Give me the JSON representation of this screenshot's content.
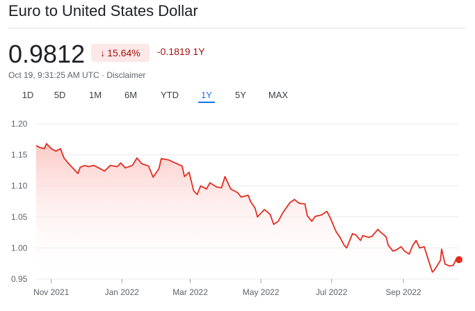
{
  "header": {
    "title": "Euro to United States Dollar"
  },
  "quote": {
    "price": "0.9812",
    "percent_change": "15.64%",
    "abs_change": "-0.1819 1Y",
    "meta": "Oct 19, 9:31:25 AM UTC · Disclaimer"
  },
  "tabs": [
    {
      "label": "1D"
    },
    {
      "label": "5D"
    },
    {
      "label": "1M"
    },
    {
      "label": "6M"
    },
    {
      "label": "YTD"
    },
    {
      "label": "1Y"
    },
    {
      "label": "5Y"
    },
    {
      "label": "MAX"
    }
  ],
  "active_tab": "1Y",
  "colors": {
    "line": "#e42b1f",
    "fill_top": "#fbc4c0",
    "negative_text": "#a50e0e",
    "negative_bg": "#fce8e6",
    "active_tab": "#1a73e8"
  },
  "chart_data": {
    "type": "area",
    "y_ticks": [
      "1.20",
      "1.15",
      "1.10",
      "1.05",
      "1.00",
      "0.95"
    ],
    "ylim": [
      0.95,
      1.2
    ],
    "x_ticks": [
      "Nov 2021",
      "Jan 2022",
      "Mar 2022",
      "May 2022",
      "Jul 2022",
      "Sep 2022"
    ],
    "x_tick_dates": [
      "2021-11-01",
      "2022-01-01",
      "2022-03-01",
      "2022-05-01",
      "2022-07-01",
      "2022-09-01"
    ],
    "grid": "horizontal",
    "series": [
      {
        "points": [
          [
            "2021-10-19",
            1.165
          ],
          [
            "2021-10-22",
            1.162
          ],
          [
            "2021-10-26",
            1.16
          ],
          [
            "2021-10-28",
            1.168
          ],
          [
            "2021-11-01",
            1.16
          ],
          [
            "2021-11-05",
            1.156
          ],
          [
            "2021-11-09",
            1.16
          ],
          [
            "2021-11-12",
            1.145
          ],
          [
            "2021-11-16",
            1.136
          ],
          [
            "2021-11-19",
            1.13
          ],
          [
            "2021-11-24",
            1.12
          ],
          [
            "2021-11-26",
            1.13
          ],
          [
            "2021-11-30",
            1.133
          ],
          [
            "2021-12-03",
            1.131
          ],
          [
            "2021-12-08",
            1.133
          ],
          [
            "2021-12-13",
            1.128
          ],
          [
            "2021-12-17",
            1.124
          ],
          [
            "2021-12-22",
            1.133
          ],
          [
            "2021-12-28",
            1.131
          ],
          [
            "2021-12-31",
            1.137
          ],
          [
            "2022-01-04",
            1.129
          ],
          [
            "2022-01-10",
            1.133
          ],
          [
            "2022-01-14",
            1.145
          ],
          [
            "2022-01-18",
            1.136
          ],
          [
            "2022-01-24",
            1.132
          ],
          [
            "2022-01-28",
            1.114
          ],
          [
            "2022-02-02",
            1.128
          ],
          [
            "2022-02-04",
            1.144
          ],
          [
            "2022-02-10",
            1.142
          ],
          [
            "2022-02-16",
            1.137
          ],
          [
            "2022-02-22",
            1.132
          ],
          [
            "2022-02-24",
            1.115
          ],
          [
            "2022-02-28",
            1.122
          ],
          [
            "2022-03-04",
            1.092
          ],
          [
            "2022-03-07",
            1.086
          ],
          [
            "2022-03-10",
            1.1
          ],
          [
            "2022-03-15",
            1.095
          ],
          [
            "2022-03-18",
            1.105
          ],
          [
            "2022-03-24",
            1.098
          ],
          [
            "2022-03-28",
            1.097
          ],
          [
            "2022-03-31",
            1.115
          ],
          [
            "2022-04-05",
            1.095
          ],
          [
            "2022-04-11",
            1.089
          ],
          [
            "2022-04-14",
            1.082
          ],
          [
            "2022-04-20",
            1.085
          ],
          [
            "2022-04-22",
            1.075
          ],
          [
            "2022-04-26",
            1.064
          ],
          [
            "2022-04-28",
            1.05
          ],
          [
            "2022-05-04",
            1.062
          ],
          [
            "2022-05-09",
            1.054
          ],
          [
            "2022-05-12",
            1.038
          ],
          [
            "2022-05-16",
            1.043
          ],
          [
            "2022-05-20",
            1.057
          ],
          [
            "2022-05-26",
            1.073
          ],
          [
            "2022-05-30",
            1.078
          ],
          [
            "2022-06-03",
            1.072
          ],
          [
            "2022-06-08",
            1.071
          ],
          [
            "2022-06-10",
            1.052
          ],
          [
            "2022-06-14",
            1.043
          ],
          [
            "2022-06-17",
            1.051
          ],
          [
            "2022-06-22",
            1.053
          ],
          [
            "2022-06-27",
            1.059
          ],
          [
            "2022-06-30",
            1.048
          ],
          [
            "2022-07-05",
            1.026
          ],
          [
            "2022-07-08",
            1.018
          ],
          [
            "2022-07-12",
            1.004
          ],
          [
            "2022-07-14",
            1.0
          ],
          [
            "2022-07-19",
            1.023
          ],
          [
            "2022-07-22",
            1.021
          ],
          [
            "2022-07-26",
            1.012
          ],
          [
            "2022-07-28",
            1.02
          ],
          [
            "2022-08-02",
            1.017
          ],
          [
            "2022-08-05",
            1.019
          ],
          [
            "2022-08-10",
            1.03
          ],
          [
            "2022-08-12",
            1.026
          ],
          [
            "2022-08-17",
            1.018
          ],
          [
            "2022-08-19",
            1.004
          ],
          [
            "2022-08-23",
            0.995
          ],
          [
            "2022-08-26",
            0.997
          ],
          [
            "2022-08-30",
            1.002
          ],
          [
            "2022-09-02",
            0.995
          ],
          [
            "2022-09-06",
            0.99
          ],
          [
            "2022-09-09",
            1.004
          ],
          [
            "2022-09-12",
            1.012
          ],
          [
            "2022-09-15",
            1.0
          ],
          [
            "2022-09-19",
            1.002
          ],
          [
            "2022-09-22",
            0.984
          ],
          [
            "2022-09-26",
            0.961
          ],
          [
            "2022-09-28",
            0.965
          ],
          [
            "2022-10-03",
            0.98
          ],
          [
            "2022-10-04",
            0.998
          ],
          [
            "2022-10-07",
            0.974
          ],
          [
            "2022-10-11",
            0.971
          ],
          [
            "2022-10-14",
            0.972
          ],
          [
            "2022-10-17",
            0.984
          ],
          [
            "2022-10-19",
            0.9812
          ]
        ]
      }
    ]
  }
}
